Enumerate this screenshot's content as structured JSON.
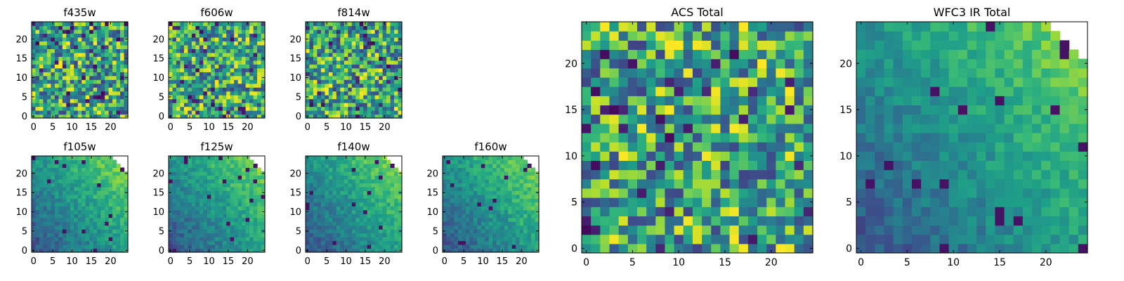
{
  "chart_data": [
    {
      "type": "heatmap",
      "title": "f435w",
      "grid_size": 25,
      "colormap": "viridis",
      "xticks": [
        "0",
        "5",
        "10",
        "15",
        "20"
      ],
      "yticks": [
        "0",
        "5",
        "10",
        "15",
        "20"
      ],
      "masked_corner": "none",
      "structure": "noise"
    },
    {
      "type": "heatmap",
      "title": "f606w",
      "grid_size": 25,
      "colormap": "viridis",
      "xticks": [
        "0",
        "5",
        "10",
        "15",
        "20"
      ],
      "yticks": [
        "0",
        "5",
        "10",
        "15",
        "20"
      ],
      "masked_corner": "none",
      "structure": "noise"
    },
    {
      "type": "heatmap",
      "title": "f814w",
      "grid_size": 25,
      "colormap": "viridis",
      "xticks": [
        "0",
        "5",
        "10",
        "15",
        "20"
      ],
      "yticks": [
        "0",
        "5",
        "10",
        "15",
        "20"
      ],
      "masked_corner": "none",
      "structure": "noise"
    },
    {
      "type": "heatmap",
      "title": "f105w",
      "grid_size": 25,
      "colormap": "viridis",
      "xticks": [
        "0",
        "5",
        "10",
        "15",
        "20"
      ],
      "yticks": [
        "0",
        "5",
        "10",
        "15",
        "20"
      ],
      "masked_corner": "top-right",
      "structure": "gradient"
    },
    {
      "type": "heatmap",
      "title": "f125w",
      "grid_size": 25,
      "colormap": "viridis",
      "xticks": [
        "0",
        "5",
        "10",
        "15",
        "20"
      ],
      "yticks": [
        "0",
        "5",
        "10",
        "15",
        "20"
      ],
      "masked_corner": "top-right",
      "structure": "gradient"
    },
    {
      "type": "heatmap",
      "title": "f140w",
      "grid_size": 25,
      "colormap": "viridis",
      "xticks": [
        "0",
        "5",
        "10",
        "15",
        "20"
      ],
      "yticks": [
        "0",
        "5",
        "10",
        "15",
        "20"
      ],
      "masked_corner": "top-right",
      "structure": "gradient"
    },
    {
      "type": "heatmap",
      "title": "f160w",
      "grid_size": 25,
      "colormap": "viridis",
      "xticks": [
        "0",
        "5",
        "10",
        "15",
        "20"
      ],
      "yticks": [
        "0",
        "5",
        "10",
        "15",
        "20"
      ],
      "masked_corner": "top-right",
      "structure": "gradient"
    },
    {
      "type": "heatmap",
      "title": "ACS Total",
      "grid_size": 25,
      "colormap": "viridis",
      "xticks": [
        "0",
        "5",
        "10",
        "15",
        "20"
      ],
      "yticks": [
        "0",
        "5",
        "10",
        "15",
        "20"
      ],
      "masked_corner": "none",
      "structure": "noise"
    },
    {
      "type": "heatmap",
      "title": "WFC3 IR Total",
      "grid_size": 25,
      "colormap": "viridis",
      "xticks": [
        "0",
        "5",
        "10",
        "15",
        "20"
      ],
      "yticks": [
        "0",
        "5",
        "10",
        "15",
        "20"
      ],
      "masked_corner": "top-right",
      "structure": "gradient"
    }
  ]
}
